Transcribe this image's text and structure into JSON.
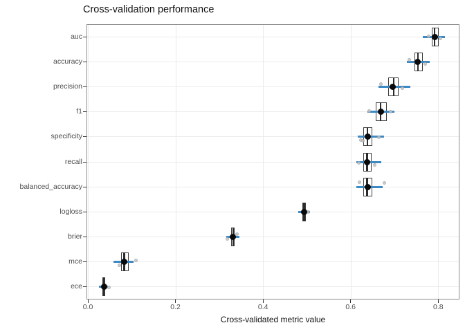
{
  "title": "Cross-validation performance",
  "x_axis": {
    "label": "Cross-validated metric value",
    "ticks": [
      0.0,
      0.2,
      0.4,
      0.6,
      0.8
    ],
    "tick_labels": [
      "0.0",
      "0.2",
      "0.4",
      "0.6",
      "0.8"
    ]
  },
  "colors": {
    "range_line": "#3d89c3",
    "box_border": "#3c3c3c",
    "box_fill": "#ffffff",
    "mean_point": "#0a0a0a",
    "jitter_point": "#c6c6c6",
    "gridline": "#ebebeb",
    "panel_border": "#8a8a8a",
    "axis_text": "#4d4d4d"
  },
  "chart_data": {
    "type": "boxplot",
    "orientation": "horizontal",
    "title": "Cross-validation performance",
    "xlabel": "Cross-validated metric value",
    "ylabel": "",
    "xlim": [
      -0.005,
      0.848
    ],
    "grid": "major-only",
    "legend": "none",
    "categories_top_to_bottom": [
      "auc",
      "accuracy",
      "precision",
      "f1",
      "specificity",
      "recall",
      "balanced_accuracy",
      "logloss",
      "brier",
      "mce",
      "ece"
    ],
    "metrics": [
      {
        "name": "auc",
        "q1": 0.783,
        "median": 0.79,
        "q3": 0.8,
        "mean": 0.791,
        "line_lo": 0.763,
        "line_hi": 0.813,
        "points": [
          {
            "v": 0.777,
            "dy": -1
          },
          {
            "v": 0.804,
            "dy": 2
          }
        ]
      },
      {
        "name": "accuracy",
        "q1": 0.745,
        "median": 0.752,
        "q3": 0.763,
        "mean": 0.751,
        "line_lo": 0.727,
        "line_hi": 0.779,
        "points": [
          {
            "v": 0.733,
            "dy": -3
          },
          {
            "v": 0.768,
            "dy": 3
          }
        ]
      },
      {
        "name": "precision",
        "q1": 0.684,
        "median": 0.697,
        "q3": 0.708,
        "mean": 0.694,
        "line_lo": 0.662,
        "line_hi": 0.734,
        "points": [
          {
            "v": 0.667,
            "dy": -4
          },
          {
            "v": 0.717,
            "dy": 2
          }
        ]
      },
      {
        "name": "f1",
        "q1": 0.655,
        "median": 0.667,
        "q3": 0.681,
        "mean": 0.667,
        "line_lo": 0.636,
        "line_hi": 0.699,
        "points": [
          {
            "v": 0.641,
            "dy": -1
          },
          {
            "v": 0.69,
            "dy": 0
          }
        ]
      },
      {
        "name": "specificity",
        "q1": 0.628,
        "median": 0.637,
        "q3": 0.648,
        "mean": 0.638,
        "line_lo": 0.615,
        "line_hi": 0.674,
        "points": [
          {
            "v": 0.621,
            "dy": 5
          },
          {
            "v": 0.627,
            "dy": 6
          },
          {
            "v": 0.663,
            "dy": 1
          }
        ]
      },
      {
        "name": "recall",
        "q1": 0.627,
        "median": 0.636,
        "q3": 0.647,
        "mean": 0.636,
        "line_lo": 0.611,
        "line_hi": 0.668,
        "points": [
          {
            "v": 0.617,
            "dy": 1
          },
          {
            "v": 0.654,
            "dy": 4
          }
        ]
      },
      {
        "name": "balanced_accuracy",
        "q1": 0.627,
        "median": 0.636,
        "q3": 0.648,
        "mean": 0.637,
        "line_lo": 0.612,
        "line_hi": 0.671,
        "points": [
          {
            "v": 0.619,
            "dy": -7
          },
          {
            "v": 0.675,
            "dy": -6
          }
        ]
      },
      {
        "name": "logloss",
        "q1": 0.489,
        "median": 0.492,
        "q3": 0.496,
        "mean": 0.492,
        "line_lo": 0.478,
        "line_hi": 0.506,
        "points": [
          {
            "v": 0.501,
            "dy": 0
          }
        ]
      },
      {
        "name": "brier",
        "q1": 0.326,
        "median": 0.33,
        "q3": 0.334,
        "mean": 0.33,
        "line_lo": 0.314,
        "line_hi": 0.345,
        "points": [
          {
            "v": 0.317,
            "dy": 3
          },
          {
            "v": 0.339,
            "dy": -4
          }
        ]
      },
      {
        "name": "mce",
        "q1": 0.075,
        "median": 0.081,
        "q3": 0.091,
        "mean": 0.082,
        "line_lo": 0.057,
        "line_hi": 0.102,
        "points": [
          {
            "v": 0.07,
            "dy": 5
          },
          {
            "v": 0.109,
            "dy": -2
          }
        ]
      },
      {
        "name": "ece",
        "q1": 0.031,
        "median": 0.035,
        "q3": 0.038,
        "mean": 0.035,
        "line_lo": 0.023,
        "line_hi": 0.044,
        "points": [
          {
            "v": 0.047,
            "dy": 1
          }
        ]
      }
    ]
  }
}
